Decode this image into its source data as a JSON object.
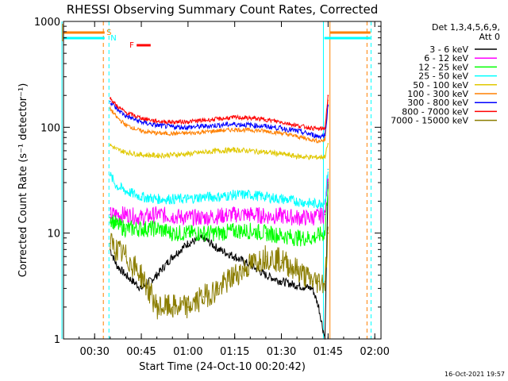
{
  "chart_data": {
    "type": "line",
    "title": "RHESSI Observing Summary Count Rates, Corrected",
    "xlabel": "Start Time (24-Oct-10 00:20:42)",
    "ylabel": "Corrected Count Rate (s⁻¹ detector⁻¹)",
    "yscale": "log",
    "ylim": [
      1,
      1000
    ],
    "xlim_minutes": [
      0,
      102
    ],
    "x_ticks": [
      {
        "label": "00:30",
        "minutes": 10
      },
      {
        "label": "00:45",
        "minutes": 25
      },
      {
        "label": "01:00",
        "minutes": 40
      },
      {
        "label": "01:15",
        "minutes": 55
      },
      {
        "label": "01:30",
        "minutes": 70
      },
      {
        "label": "01:45",
        "minutes": 85
      },
      {
        "label": "02:00",
        "minutes": 100
      }
    ],
    "y_ticks": [
      {
        "label": "1",
        "value": 1
      },
      {
        "label": "10",
        "value": 10
      },
      {
        "label": "100",
        "value": 100
      },
      {
        "label": "1000",
        "value": 1000
      }
    ],
    "legend_header": [
      "Det 1,3,4,5,6,9,",
      "Att 0"
    ],
    "legend_position": "right",
    "x": [
      15,
      17,
      20,
      25,
      30,
      35,
      40,
      45,
      50,
      55,
      60,
      65,
      70,
      75,
      80,
      82,
      84,
      85
    ],
    "series": [
      {
        "name": "3 - 6 keV",
        "color": "#000000",
        "values": [
          7,
          5,
          4,
          3,
          4,
          6,
          8,
          9,
          7,
          6,
          5,
          4,
          3.5,
          3.2,
          3,
          2,
          1,
          30
        ]
      },
      {
        "name": "6 - 12 keV",
        "color": "#ff00ff",
        "values": [
          15,
          15,
          15,
          14,
          15,
          14.5,
          14,
          14,
          14.5,
          15,
          15,
          14.5,
          14.5,
          14,
          14,
          14.5,
          15,
          40
        ]
      },
      {
        "name": "12 - 25 keV",
        "color": "#00ff00",
        "values": [
          14,
          12,
          11,
          11,
          11,
          10,
          10,
          10,
          10,
          10.5,
          10.5,
          10,
          9.5,
          9,
          9,
          9.5,
          10,
          30
        ]
      },
      {
        "name": "25 - 50 keV",
        "color": "#00ffff",
        "values": [
          35,
          28,
          25,
          22,
          21,
          21,
          21,
          22,
          22,
          23,
          23,
          22,
          21,
          20,
          19,
          19,
          20,
          40
        ]
      },
      {
        "name": "50 - 100 keV",
        "color": "#e0c800",
        "values": [
          68,
          62,
          58,
          55,
          54,
          55,
          56,
          58,
          60,
          61,
          60,
          58,
          56,
          53,
          52,
          52,
          53,
          70
        ]
      },
      {
        "name": "100 - 300 keV",
        "color": "#ff8000",
        "values": [
          150,
          125,
          105,
          92,
          88,
          87,
          88,
          90,
          93,
          95,
          94,
          92,
          88,
          82,
          76,
          74,
          76,
          180
        ]
      },
      {
        "name": "300 - 800 keV",
        "color": "#0000ff",
        "values": [
          175,
          150,
          128,
          112,
          104,
          101,
          100,
          102,
          105,
          107,
          105,
          102,
          98,
          92,
          85,
          82,
          84,
          160
        ]
      },
      {
        "name": "800 - 7000 keV",
        "color": "#ff0000",
        "values": [
          190,
          160,
          138,
          122,
          114,
          112,
          113,
          116,
          120,
          124,
          122,
          118,
          112,
          104,
          98,
          96,
          98,
          200
        ]
      },
      {
        "name": "7000 - 15000 keV",
        "color": "#8b7d00",
        "values": [
          8,
          7,
          6,
          4,
          2,
          2,
          2,
          2.5,
          3,
          4,
          5,
          6,
          5.5,
          4.5,
          3.5,
          3.5,
          3.5,
          10
        ]
      }
    ],
    "flags": [
      {
        "label": "S",
        "color": "#ff8000",
        "state": "eclipse / SAA flag"
      },
      {
        "label": "N",
        "color": "#00ffff",
        "state": "night flag"
      },
      {
        "label": "F",
        "color": "#ff0000",
        "state": "flare flag"
      }
    ],
    "footer_timestamp": "16-Oct-2021 19:57"
  }
}
